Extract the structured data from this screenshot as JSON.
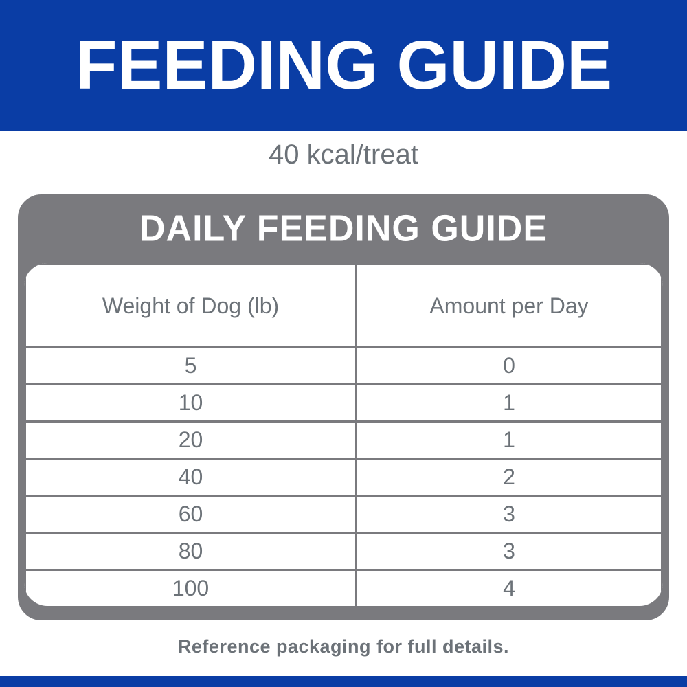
{
  "banner": {
    "title": "FEEDING GUIDE"
  },
  "calorie_note": "40 kcal/treat",
  "card": {
    "title": "DAILY FEEDING GUIDE",
    "table": {
      "columns": [
        "Weight of Dog (lb)",
        "Amount per Day"
      ],
      "rows": [
        {
          "weight": "5",
          "amount": "0"
        },
        {
          "weight": "10",
          "amount": "1"
        },
        {
          "weight": "20",
          "amount": "1"
        },
        {
          "weight": "40",
          "amount": "2"
        },
        {
          "weight": "60",
          "amount": "3"
        },
        {
          "weight": "80",
          "amount": "3"
        },
        {
          "weight": "100",
          "amount": "4"
        }
      ]
    }
  },
  "footer": {
    "note": "Reference packaging for full details."
  },
  "colors": {
    "brand_blue": "#0a3da5",
    "frame_gray": "#7a7a7e",
    "text_gray": "#6c7278"
  }
}
